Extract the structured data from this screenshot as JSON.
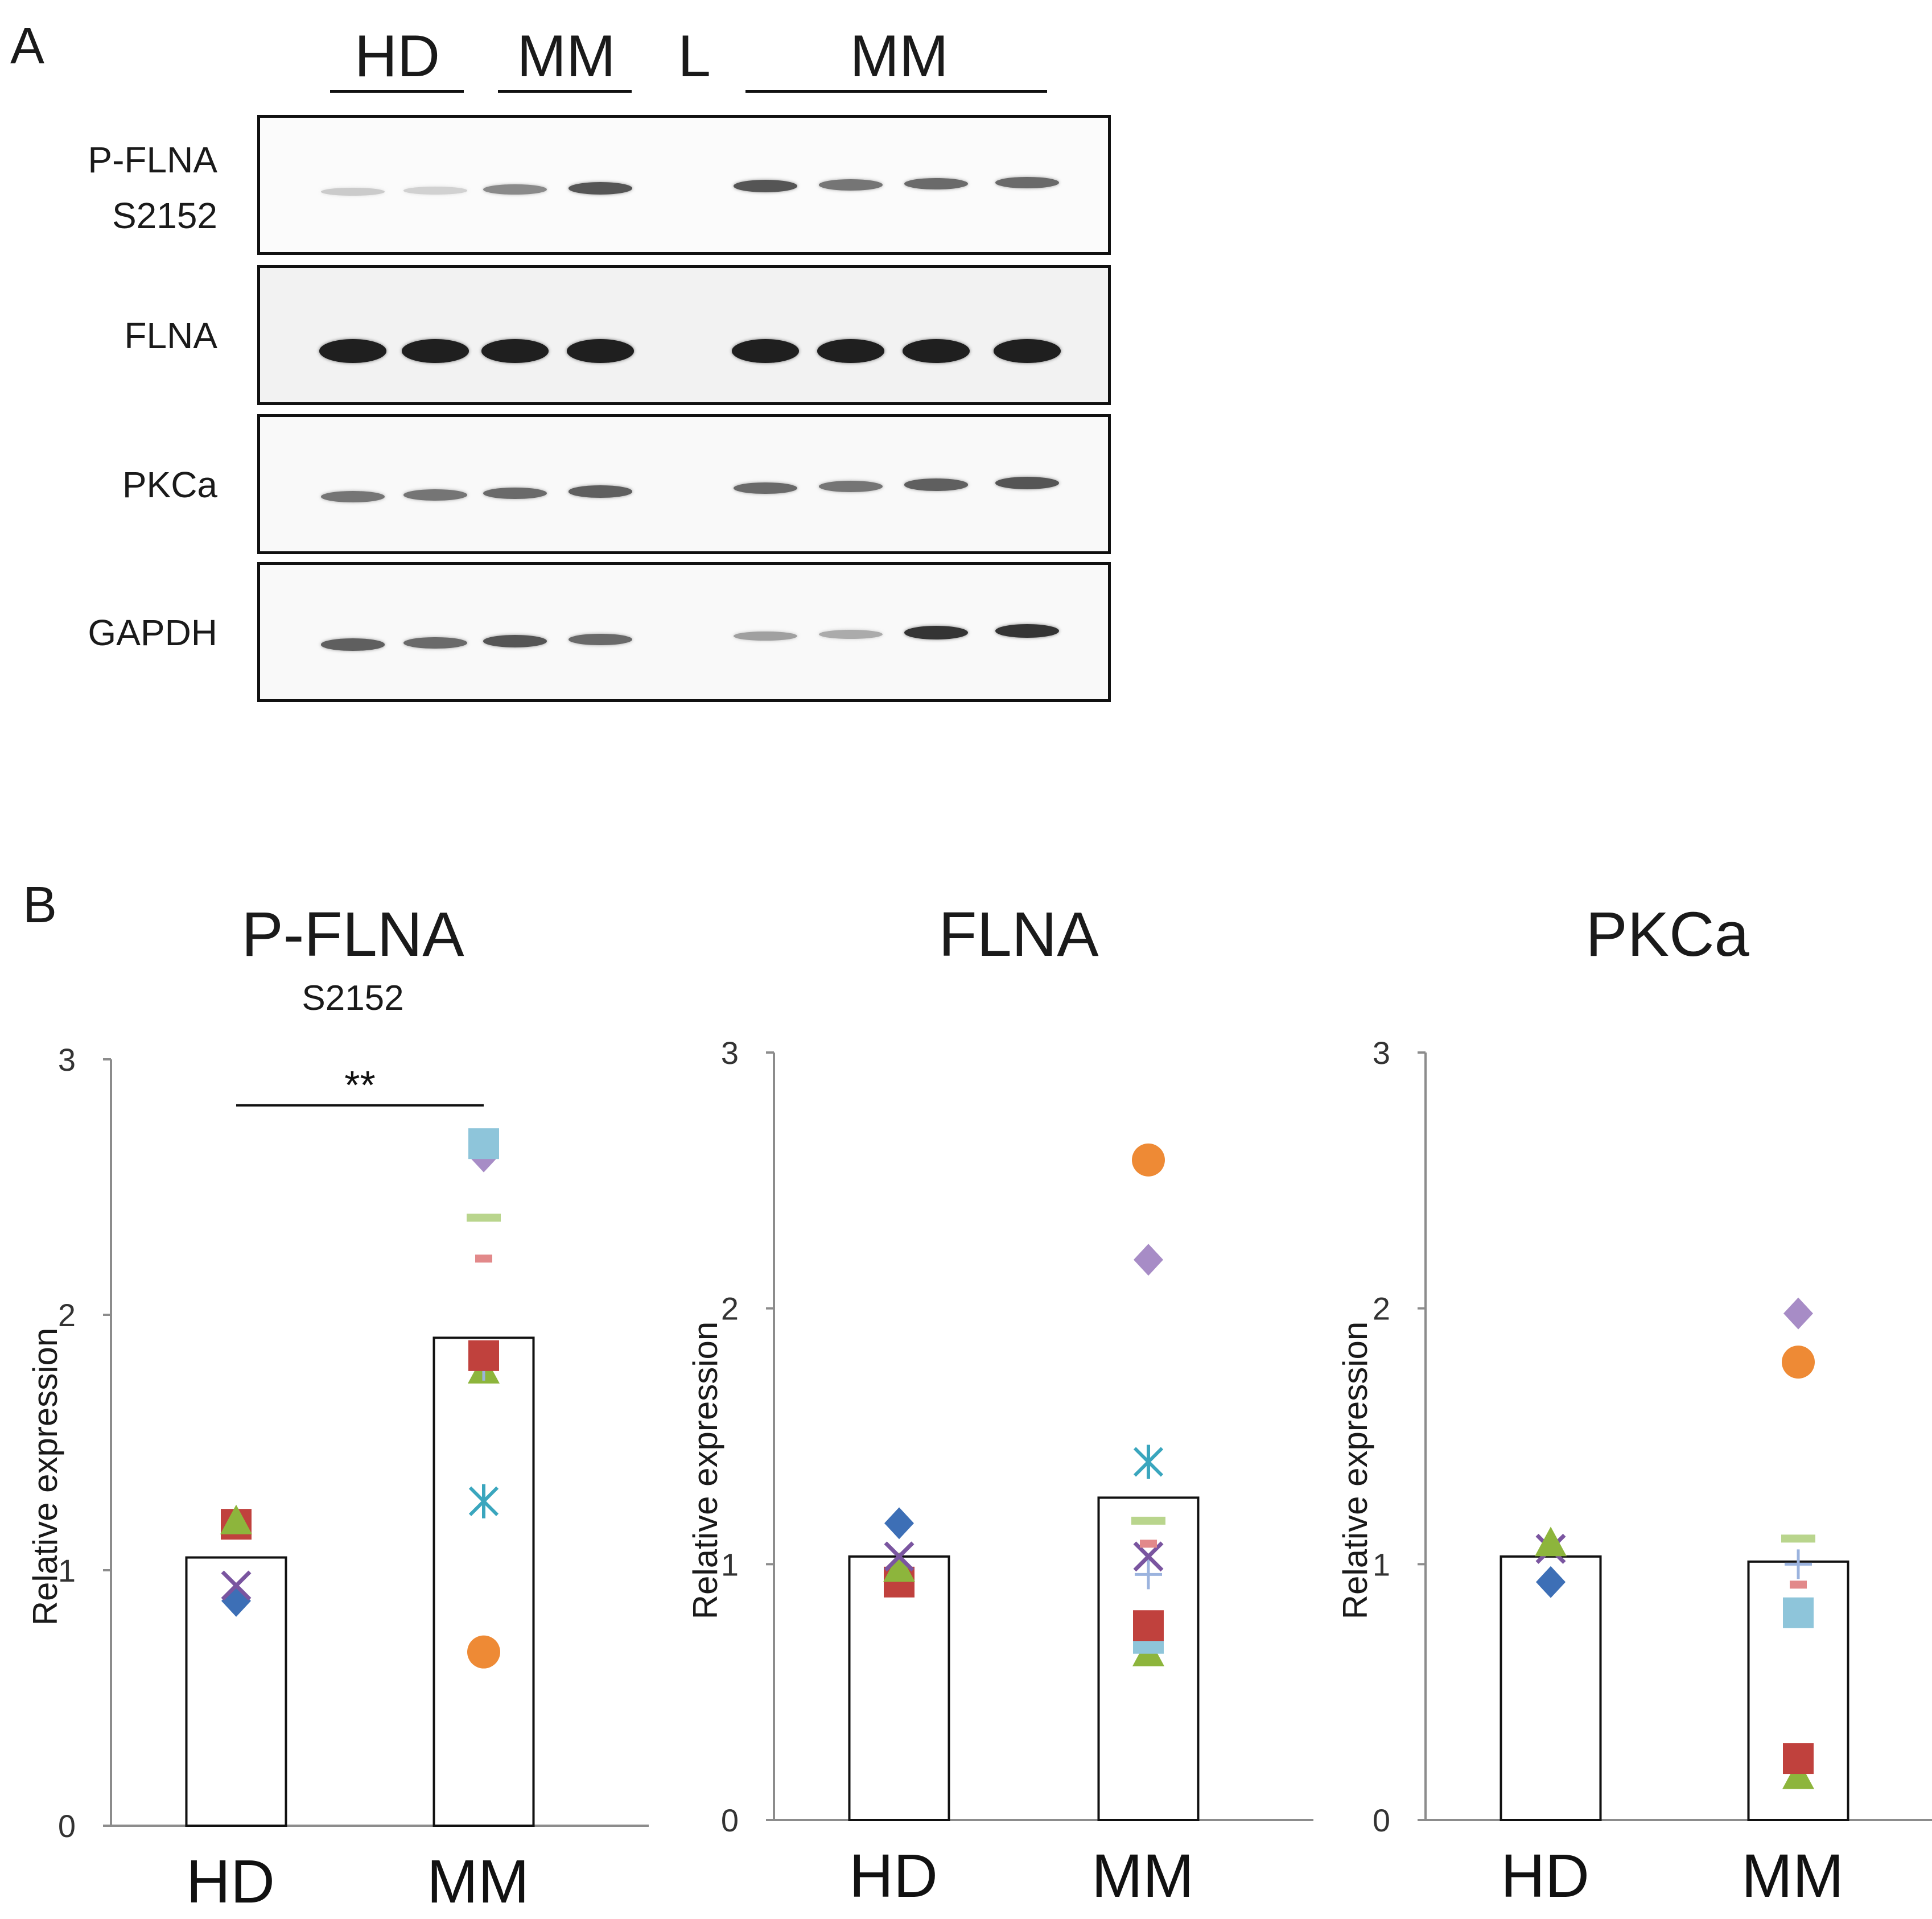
{
  "panelA": {
    "letter": "A",
    "groups": [
      "HD",
      "MM",
      "L",
      "MM"
    ],
    "blots": [
      {
        "label": "P-FLNA\nS2152",
        "label1": "P-FLNA",
        "label2": "S2152",
        "intensities": [
          0.15,
          0.12,
          0.45,
          0.7,
          0,
          0.7,
          0.55,
          0.6,
          0.6
        ]
      },
      {
        "label": "FLNA",
        "intensities": [
          0.95,
          0.95,
          0.95,
          0.95,
          0,
          0.95,
          0.95,
          0.95,
          0.95
        ]
      },
      {
        "label": "PKCa",
        "intensities": [
          0.55,
          0.55,
          0.6,
          0.65,
          0,
          0.6,
          0.55,
          0.65,
          0.7
        ]
      },
      {
        "label": "GAPDH",
        "intensities": [
          0.65,
          0.6,
          0.7,
          0.6,
          0,
          0.35,
          0.3,
          0.85,
          0.85
        ]
      }
    ]
  },
  "panelB": {
    "letter": "B"
  },
  "chart_data": [
    {
      "type": "bar",
      "title": "P-FLNA",
      "subtitle": "S2152",
      "categories": [
        "HD",
        "MM"
      ],
      "values": [
        1.05,
        1.91
      ],
      "ylabel": "Relative expression",
      "ylim": [
        0,
        3
      ],
      "yticks": [
        "0",
        "1",
        "2",
        "3"
      ],
      "significance": "**",
      "points": {
        "HD": [
          {
            "shape": "diamond",
            "color": "#3d6fb6",
            "value": 0.88
          },
          {
            "shape": "x",
            "color": "#7a55a0",
            "value": 0.94
          },
          {
            "shape": "square",
            "color": "#c0413d",
            "value": 1.18
          },
          {
            "shape": "triangle",
            "color": "#8db53c",
            "value": 1.19
          }
        ],
        "MM": [
          {
            "shape": "circle",
            "color": "#ee8a35",
            "value": 0.68
          },
          {
            "shape": "asterisk",
            "color": "#3aa6be",
            "value": 1.27
          },
          {
            "shape": "triangle",
            "color": "#8db53c",
            "value": 1.78
          },
          {
            "shape": "plus",
            "color": "#9bb3de",
            "value": 1.8
          },
          {
            "shape": "square",
            "color": "#c0413d",
            "value": 1.84
          },
          {
            "shape": "dash-short",
            "color": "#e2898a",
            "value": 2.22
          },
          {
            "shape": "dash",
            "color": "#b9d58d",
            "value": 2.38
          },
          {
            "shape": "diamond",
            "color": "#a78cc6",
            "value": 2.62
          },
          {
            "shape": "square",
            "color": "#8ec5da",
            "value": 2.67
          }
        ]
      }
    },
    {
      "type": "bar",
      "title": "FLNA",
      "categories": [
        "HD",
        "MM"
      ],
      "values": [
        1.03,
        1.26
      ],
      "ylabel": "Relative expression",
      "ylim": [
        0,
        3
      ],
      "yticks": [
        "0",
        "1",
        "2",
        "3"
      ],
      "points": {
        "HD": [
          {
            "shape": "square",
            "color": "#c0413d",
            "value": 0.93
          },
          {
            "shape": "triangle",
            "color": "#8db53c",
            "value": 0.98
          },
          {
            "shape": "x",
            "color": "#7a55a0",
            "value": 1.03
          },
          {
            "shape": "diamond",
            "color": "#3d6fb6",
            "value": 1.16
          }
        ],
        "MM": [
          {
            "shape": "triangle",
            "color": "#8db53c",
            "value": 0.65
          },
          {
            "shape": "square",
            "color": "#8ec5da",
            "value": 0.71
          },
          {
            "shape": "square",
            "color": "#c0413d",
            "value": 0.76
          },
          {
            "shape": "plus",
            "color": "#9bb3de",
            "value": 0.96
          },
          {
            "shape": "x",
            "color": "#7a55a0",
            "value": 1.03
          },
          {
            "shape": "dash-short",
            "color": "#e2898a",
            "value": 1.08
          },
          {
            "shape": "dash",
            "color": "#b9d58d",
            "value": 1.17
          },
          {
            "shape": "asterisk",
            "color": "#3aa6be",
            "value": 1.4
          },
          {
            "shape": "diamond",
            "color": "#a78cc6",
            "value": 2.19
          },
          {
            "shape": "circle",
            "color": "#ee8a35",
            "value": 2.58
          }
        ]
      }
    },
    {
      "type": "bar",
      "title": "PKCa",
      "categories": [
        "HD",
        "MM"
      ],
      "values": [
        1.03,
        1.01
      ],
      "ylabel": "Relative expression",
      "ylim": [
        0,
        3
      ],
      "yticks": [
        "0",
        "1",
        "2",
        "3"
      ],
      "points": {
        "HD": [
          {
            "shape": "diamond",
            "color": "#3d6fb6",
            "value": 0.93
          },
          {
            "shape": "x",
            "color": "#7a55a0",
            "value": 1.06
          },
          {
            "shape": "triangle",
            "color": "#8db53c",
            "value": 1.08
          }
        ],
        "MM": [
          {
            "shape": "triangle",
            "color": "#8db53c",
            "value": 0.17
          },
          {
            "shape": "square",
            "color": "#c0413d",
            "value": 0.24
          },
          {
            "shape": "square",
            "color": "#8ec5da",
            "value": 0.81
          },
          {
            "shape": "dash-short",
            "color": "#e2898a",
            "value": 0.92
          },
          {
            "shape": "plus",
            "color": "#9bb3de",
            "value": 1.0
          },
          {
            "shape": "dash",
            "color": "#b9d58d",
            "value": 1.1
          },
          {
            "shape": "circle",
            "color": "#ee8a35",
            "value": 1.79
          },
          {
            "shape": "diamond",
            "color": "#a78cc6",
            "value": 1.98
          }
        ]
      }
    }
  ]
}
